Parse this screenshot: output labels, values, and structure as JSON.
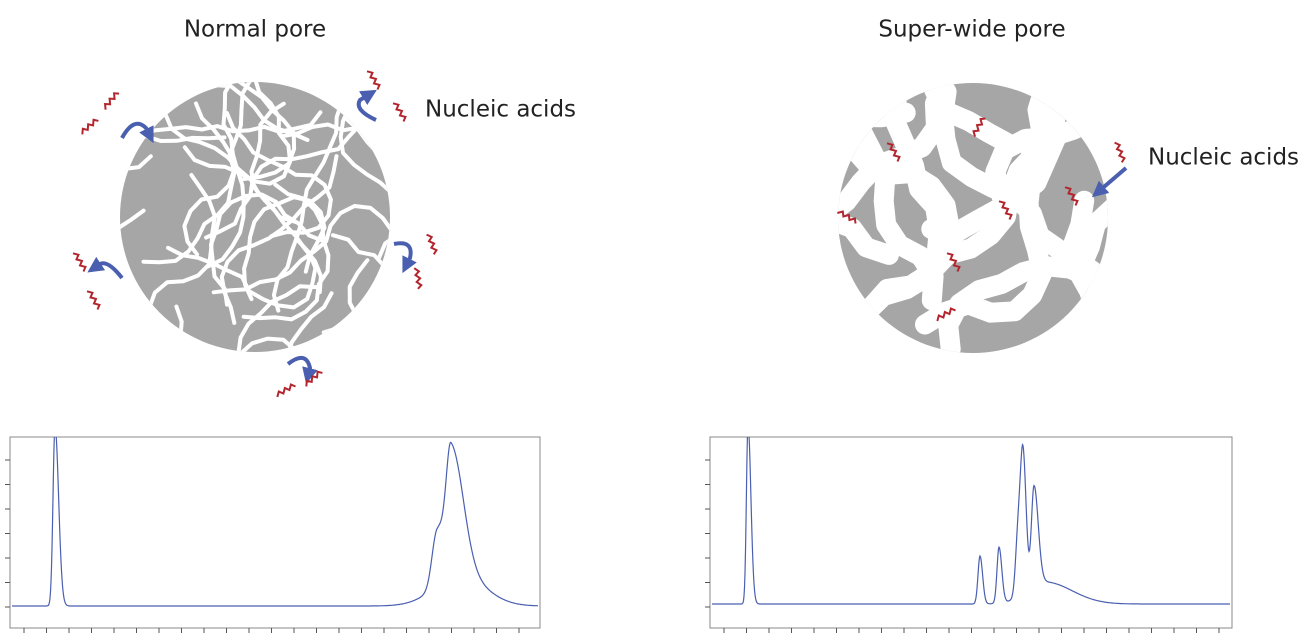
{
  "panels": [
    {
      "title": "Normal pore",
      "label": "Nucleic acids"
    },
    {
      "title": "Super-wide pore",
      "label": "Nucleic acids"
    }
  ]
}
